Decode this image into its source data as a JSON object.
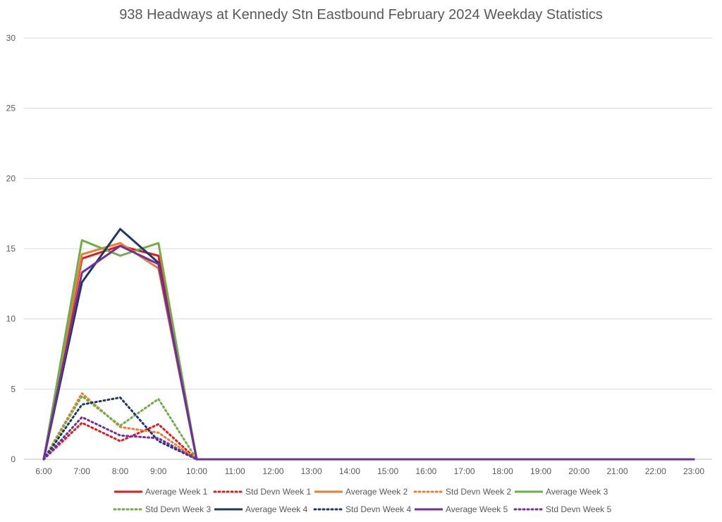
{
  "chart_data": {
    "type": "line",
    "title": "938  Headways at Kennedy Stn Eastbound February 2024 Weekday Statistics",
    "xlabel": "",
    "ylabel": "",
    "categories": [
      "6:00",
      "7:00",
      "8:00",
      "9:00",
      "10:00",
      "11:00",
      "12:00",
      "13:00",
      "14:00",
      "15:00",
      "16:00",
      "17:00",
      "18:00",
      "19:00",
      "20:00",
      "21:00",
      "22:00",
      "23:00"
    ],
    "ylim": [
      0,
      30
    ],
    "yticks": [
      0,
      5,
      10,
      15,
      20,
      25,
      30
    ],
    "grid": true,
    "legend_position": "bottom",
    "series": [
      {
        "name": "Average Week 1",
        "color": "#e31a1c",
        "style": "solid",
        "values": [
          0,
          14.3,
          15.2,
          14.5,
          0,
          0,
          0,
          0,
          0,
          0,
          0,
          0,
          0,
          0,
          0,
          0,
          0,
          0
        ]
      },
      {
        "name": "Std Devn Week 1",
        "color": "#e31a1c",
        "style": "dotted",
        "values": [
          0,
          2.6,
          1.3,
          2.5,
          0,
          0,
          0,
          0,
          0,
          0,
          0,
          0,
          0,
          0,
          0,
          0,
          0,
          0
        ]
      },
      {
        "name": "Average Week 2",
        "color": "#ed7d31",
        "style": "solid",
        "values": [
          0,
          14.6,
          15.4,
          13.6,
          0,
          0,
          0,
          0,
          0,
          0,
          0,
          0,
          0,
          0,
          0,
          0,
          0,
          0
        ]
      },
      {
        "name": "Std Devn Week 2",
        "color": "#ed7d31",
        "style": "dotted",
        "values": [
          0,
          4.7,
          2.3,
          1.9,
          0,
          0,
          0,
          0,
          0,
          0,
          0,
          0,
          0,
          0,
          0,
          0,
          0,
          0
        ]
      },
      {
        "name": "Average Week 3",
        "color": "#70ad47",
        "style": "solid",
        "values": [
          0,
          15.6,
          14.5,
          15.4,
          0,
          0,
          0,
          0,
          0,
          0,
          0,
          0,
          0,
          0,
          0,
          0,
          0,
          0
        ]
      },
      {
        "name": "Std Devn Week 3",
        "color": "#70ad47",
        "style": "dotted",
        "values": [
          0,
          4.5,
          2.4,
          4.3,
          0,
          0,
          0,
          0,
          0,
          0,
          0,
          0,
          0,
          0,
          0,
          0,
          0,
          0
        ]
      },
      {
        "name": "Average Week 4",
        "color": "#1f3864",
        "style": "solid",
        "values": [
          0,
          12.6,
          16.4,
          14.0,
          0,
          0,
          0,
          0,
          0,
          0,
          0,
          0,
          0,
          0,
          0,
          0,
          0,
          0
        ]
      },
      {
        "name": "Std Devn Week 4",
        "color": "#1f3864",
        "style": "dotted",
        "values": [
          0,
          3.9,
          4.4,
          1.3,
          0,
          0,
          0,
          0,
          0,
          0,
          0,
          0,
          0,
          0,
          0,
          0,
          0,
          0
        ]
      },
      {
        "name": "Average Week 5",
        "color": "#7030a0",
        "style": "solid",
        "values": [
          0,
          13.3,
          15.2,
          13.9,
          0,
          0,
          0,
          0,
          0,
          0,
          0,
          0,
          0,
          0,
          0,
          0,
          0,
          0
        ]
      },
      {
        "name": "Std Devn Week 5",
        "color": "#7030a0",
        "style": "dotted",
        "values": [
          0,
          3.0,
          1.7,
          1.5,
          0,
          0,
          0,
          0,
          0,
          0,
          0,
          0,
          0,
          0,
          0,
          0,
          0,
          0
        ]
      }
    ]
  }
}
